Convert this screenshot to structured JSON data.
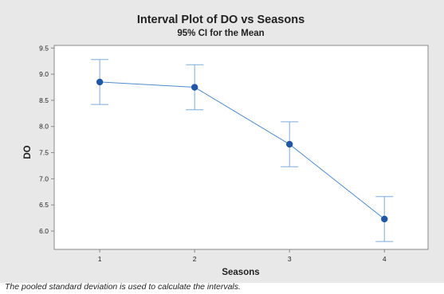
{
  "chart_data": {
    "type": "line",
    "title": "Interval Plot of DO vs Seasons",
    "subtitle": "95% CI for the Mean",
    "xlabel": "Seasons",
    "ylabel": "DO",
    "categories": [
      "1",
      "2",
      "3",
      "4"
    ],
    "mean": [
      8.85,
      8.75,
      7.66,
      6.23
    ],
    "ci_upper": [
      9.28,
      9.18,
      8.09,
      6.66
    ],
    "ci_lower": [
      8.42,
      8.32,
      7.23,
      5.8
    ],
    "ylim": [
      5.65,
      9.55
    ],
    "yticks": [
      6.0,
      6.5,
      7.0,
      7.5,
      8.0,
      8.5,
      9.0,
      9.5
    ],
    "xrange": [
      0.52,
      4.46
    ],
    "grid": false,
    "legend": "none",
    "footnote": "The pooled standard deviation is used to calculate the intervals."
  },
  "colors": {
    "figure_background": "#e8e8e8",
    "plot_background": "#ffffff",
    "marker": "#1f56a6",
    "line": "#4f8ccc",
    "error_bar": "#7fabd9",
    "axis": "#888888",
    "text": "#222222"
  }
}
